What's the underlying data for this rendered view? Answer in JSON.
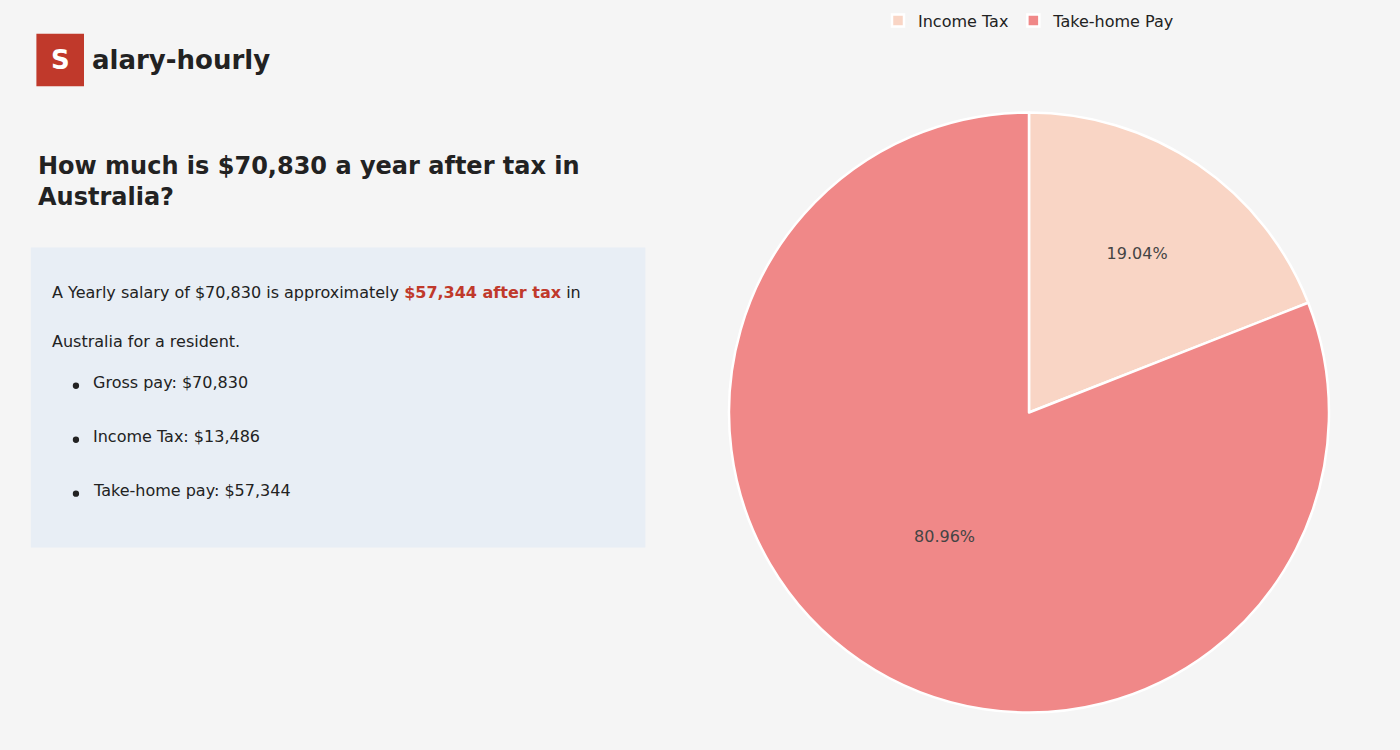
{
  "chart_data": {
    "type": "pie",
    "title": "How much is $70,830 a year after tax in\nAustralia?",
    "categories": [
      "Income Tax",
      "Take-home Pay"
    ],
    "values": [
      19.04,
      80.96
    ],
    "value_labels": [
      "19.04%",
      "80.96%"
    ],
    "colors": [
      "#f9d5c5",
      "#f08888"
    ],
    "data_labels": true,
    "legend": "top",
    "annotations": [
      {
        "text": "S",
        "color": "#c0392b"
      },
      {
        "text": "alary-hourly"
      },
      {
        "text": "A Yearly salary of $70,830 is approximately "
      },
      {
        "text": "$57,344 after tax",
        "color": "#c0392b"
      },
      {
        "text": " in"
      },
      {
        "text": "Australia for a resident."
      },
      {
        "text": "Gross pay: $70,830"
      },
      {
        "text": "Income Tax: $13,486"
      },
      {
        "text": "Take-home pay: $57,344"
      }
    ]
  }
}
